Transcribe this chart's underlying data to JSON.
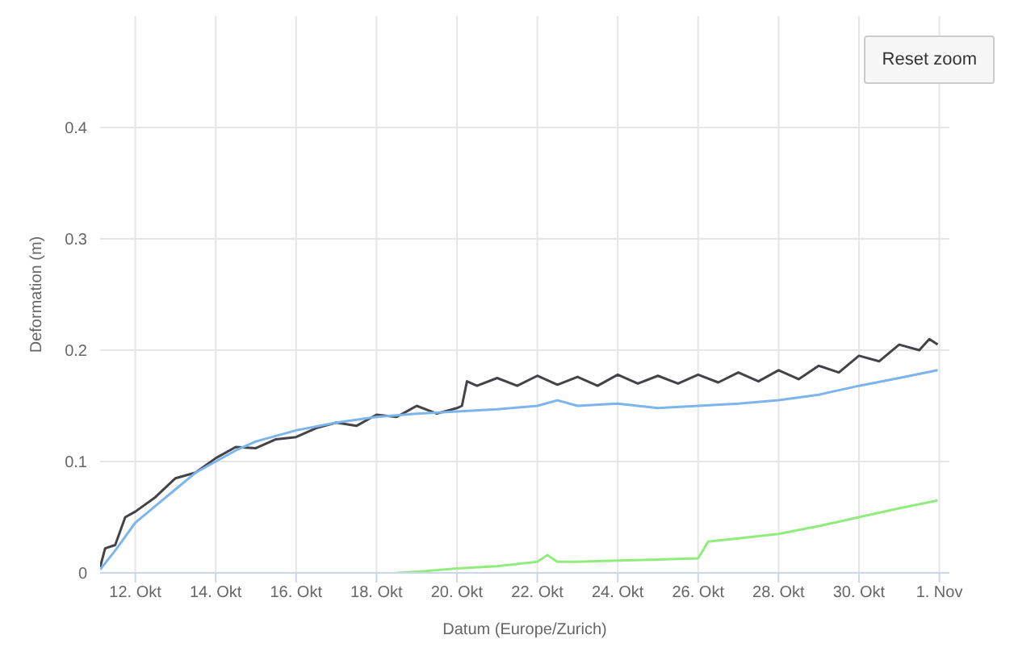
{
  "chart_data": {
    "type": "line",
    "xlabel": "Datum (Europe/Zurich)",
    "ylabel": "Deformation (m)",
    "annotations": [
      "Reset zoom"
    ],
    "xlim": [
      "--10-11T03:00",
      "--11-01T06:00"
    ],
    "xticks": [
      {
        "value": "--10-12",
        "label": "12. Okt"
      },
      {
        "value": "--10-14",
        "label": "14. Okt"
      },
      {
        "value": "--10-16",
        "label": "16. Okt"
      },
      {
        "value": "--10-18",
        "label": "18. Okt"
      },
      {
        "value": "--10-20",
        "label": "20. Okt"
      },
      {
        "value": "--10-22",
        "label": "22. Okt"
      },
      {
        "value": "--10-24",
        "label": "24. Okt"
      },
      {
        "value": "--10-26",
        "label": "26. Okt"
      },
      {
        "value": "--10-28",
        "label": "28. Okt"
      },
      {
        "value": "--10-30",
        "label": "30. Okt"
      },
      {
        "value": "--11-01",
        "label": "1. Nov"
      }
    ],
    "ylim": [
      0,
      0.5
    ],
    "yticks": [
      0,
      0.1,
      0.2,
      0.3,
      0.4
    ],
    "grid": true,
    "marker": "none",
    "line_style": "solid",
    "series": [
      {
        "color": "#434348",
        "x": [
          "--10-11T03:00",
          "--10-11T06:00",
          "--10-11T12:00",
          "--10-11T18:00",
          "--10-12T00:00",
          "--10-12T12:00",
          "--10-13T00:00",
          "--10-13T12:00",
          "--10-14T00:00",
          "--10-14T12:00",
          "--10-15T00:00",
          "--10-15T12:00",
          "--10-16T00:00",
          "--10-16T12:00",
          "--10-17T00:00",
          "--10-17T12:00",
          "--10-18T00:00",
          "--10-18T12:00",
          "--10-19T00:00",
          "--10-19T12:00",
          "--10-20T00:00",
          "--10-20T03:00",
          "--10-20T06:00",
          "--10-20T12:00",
          "--10-21T00:00",
          "--10-21T12:00",
          "--10-22T00:00",
          "--10-22T12:00",
          "--10-23T00:00",
          "--10-23T12:00",
          "--10-24T00:00",
          "--10-24T12:00",
          "--10-25T00:00",
          "--10-25T12:00",
          "--10-26T00:00",
          "--10-26T12:00",
          "--10-27T00:00",
          "--10-27T12:00",
          "--10-28T00:00",
          "--10-28T12:00",
          "--10-29T00:00",
          "--10-29T12:00",
          "--10-30T00:00",
          "--10-30T12:00",
          "--10-31T00:00",
          "--10-31T12:00",
          "--10-31T18:00",
          "--10-31T23:00"
        ],
        "values": [
          0.005,
          0.022,
          0.025,
          0.05,
          0.055,
          0.068,
          0.085,
          0.09,
          0.103,
          0.113,
          0.112,
          0.12,
          0.122,
          0.13,
          0.135,
          0.132,
          0.142,
          0.14,
          0.15,
          0.143,
          0.148,
          0.15,
          0.172,
          0.168,
          0.175,
          0.168,
          0.177,
          0.169,
          0.176,
          0.168,
          0.178,
          0.17,
          0.177,
          0.17,
          0.178,
          0.171,
          0.18,
          0.172,
          0.182,
          0.174,
          0.186,
          0.18,
          0.195,
          0.19,
          0.205,
          0.2,
          0.21,
          0.205
        ]
      },
      {
        "color": "#7cb5ec",
        "x": [
          "--10-11T03:00",
          "--10-11T12:00",
          "--10-12T00:00",
          "--10-12T12:00",
          "--10-13T00:00",
          "--10-13T12:00",
          "--10-14T00:00",
          "--10-14T12:00",
          "--10-15T00:00",
          "--10-16T00:00",
          "--10-17T00:00",
          "--10-18T00:00",
          "--10-19T00:00",
          "--10-20T00:00",
          "--10-21T00:00",
          "--10-22T00:00",
          "--10-22T12:00",
          "--10-23T00:00",
          "--10-24T00:00",
          "--10-25T00:00",
          "--10-26T00:00",
          "--10-27T00:00",
          "--10-28T00:00",
          "--10-29T00:00",
          "--10-30T00:00",
          "--10-31T00:00",
          "--10-31T23:00"
        ],
        "values": [
          0.003,
          0.02,
          0.045,
          0.06,
          0.075,
          0.09,
          0.1,
          0.11,
          0.118,
          0.128,
          0.135,
          0.14,
          0.143,
          0.145,
          0.147,
          0.15,
          0.155,
          0.15,
          0.152,
          0.148,
          0.15,
          0.152,
          0.155,
          0.16,
          0.168,
          0.175,
          0.182
        ]
      },
      {
        "color": "#90ed7d",
        "x": [
          "--10-18T12:00",
          "--10-19T00:00",
          "--10-20T00:00",
          "--10-21T00:00",
          "--10-22T00:00",
          "--10-22T06:00",
          "--10-22T12:00",
          "--10-23T00:00",
          "--10-24T00:00",
          "--10-25T00:00",
          "--10-26T00:00",
          "--10-26T06:00",
          "--10-27T00:00",
          "--10-28T00:00",
          "--10-29T00:00",
          "--10-30T00:00",
          "--10-31T00:00",
          "--10-31T23:00"
        ],
        "values": [
          0,
          0.001,
          0.004,
          0.006,
          0.01,
          0.016,
          0.01,
          0.01,
          0.011,
          0.012,
          0.013,
          0.028,
          0.031,
          0.035,
          0.042,
          0.05,
          0.058,
          0.065
        ]
      }
    ]
  }
}
